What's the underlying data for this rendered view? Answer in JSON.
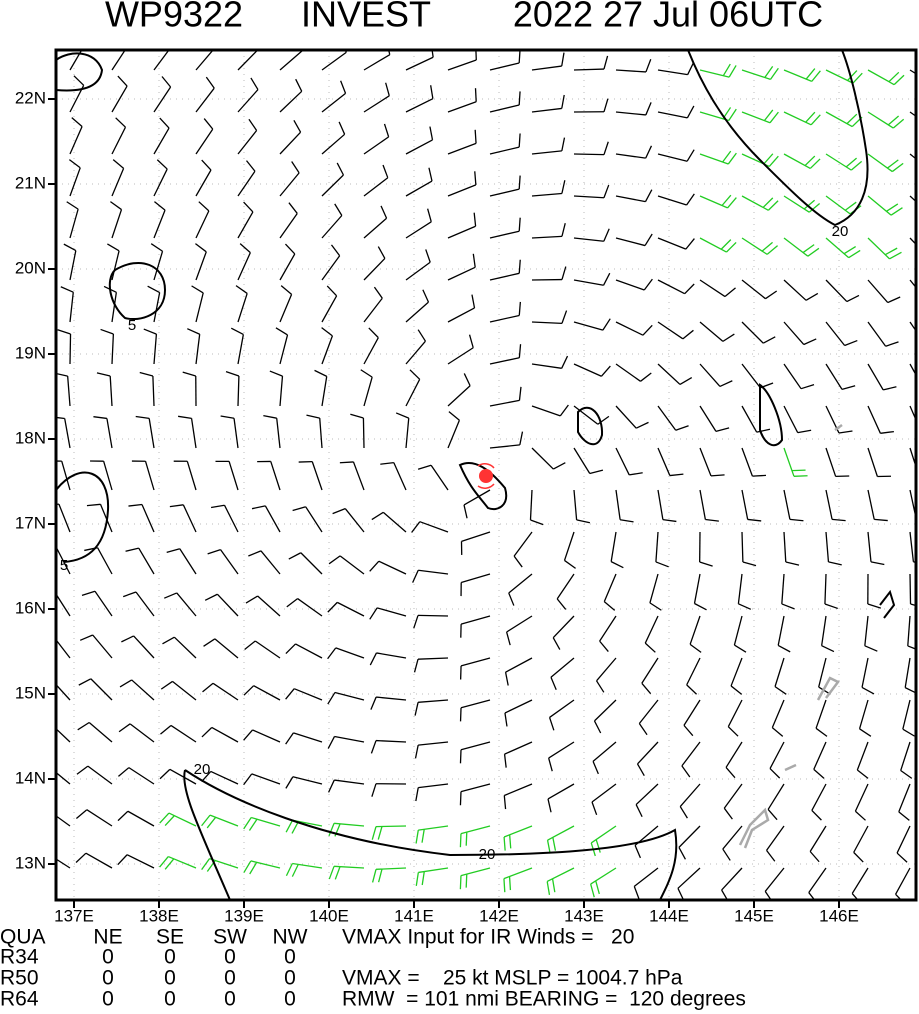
{
  "title": [
    "WP9322",
    "INVEST",
    "2022 27 Jul 06UTC"
  ],
  "map": {
    "lon_labels": [
      "137E",
      "138E",
      "139E",
      "140E",
      "141E",
      "142E",
      "143E",
      "144E",
      "145E",
      "146E"
    ],
    "lat_labels": [
      "22N",
      "21N",
      "20N",
      "19N",
      "18N",
      "17N",
      "16N",
      "15N",
      "14N",
      "13N"
    ],
    "contour_labels": [
      "20",
      "20",
      "20",
      "5",
      "5"
    ]
  },
  "table": {
    "header": [
      "QUA",
      "NE",
      "SE",
      "SW",
      "NW"
    ],
    "rows": [
      [
        "R34",
        "0",
        "0",
        "0",
        "0"
      ],
      [
        "R50",
        "0",
        "0",
        "0",
        "0"
      ],
      [
        "R64",
        "0",
        "0",
        "0",
        "0"
      ]
    ],
    "notes": [
      "VMAX Input for IR Winds =   20",
      "",
      "VMAX =    25 kt MSLP = 1004.7 hPa",
      "RMW  = 101 nmi BEARING =  120 degrees"
    ]
  }
}
